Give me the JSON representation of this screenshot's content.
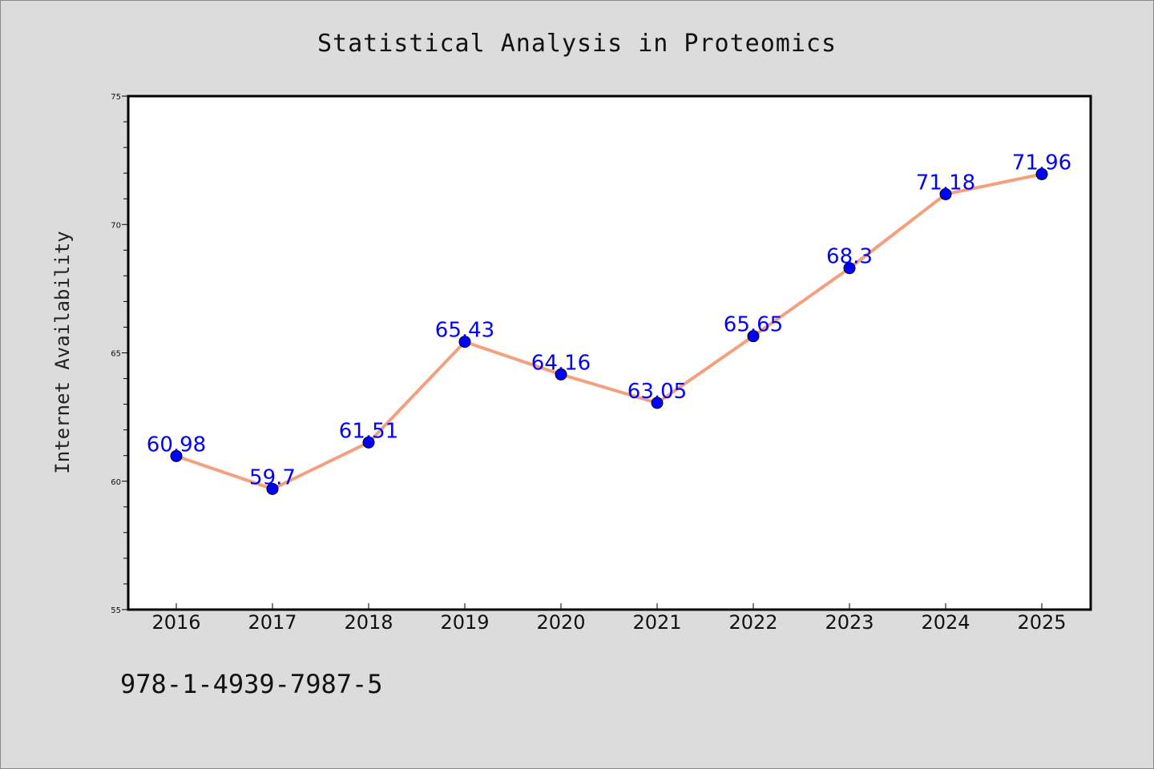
{
  "chart_data": {
    "type": "line",
    "title": "Statistical Analysis in Proteomics",
    "xlabel": "",
    "ylabel": "Internet Availability",
    "categories": [
      "2016",
      "2017",
      "2018",
      "2019",
      "2020",
      "2021",
      "2022",
      "2023",
      "2024",
      "2025"
    ],
    "series": [
      {
        "values": [
          60.98,
          59.7,
          61.51,
          65.43,
          64.16,
          63.05,
          65.65,
          68.3,
          71.18,
          71.96
        ],
        "labels": [
          "60.98",
          "59.7",
          "61.51",
          "65.43",
          "64.16",
          "63.05",
          "65.65",
          "68.3",
          "71.18",
          "71.96"
        ]
      }
    ],
    "ylim": [
      55,
      75
    ],
    "yticks": [
      "55",
      "60",
      "65",
      "70",
      "75"
    ],
    "grid": false,
    "legend": "none",
    "colors": {
      "line": "#f4a07e",
      "marker": "#0000ff",
      "label": "#0000ff",
      "plot_background": "#ffffff",
      "page_background": "#dcdcdc"
    }
  },
  "footer": {
    "code": "978-1-4939-7987-5"
  }
}
